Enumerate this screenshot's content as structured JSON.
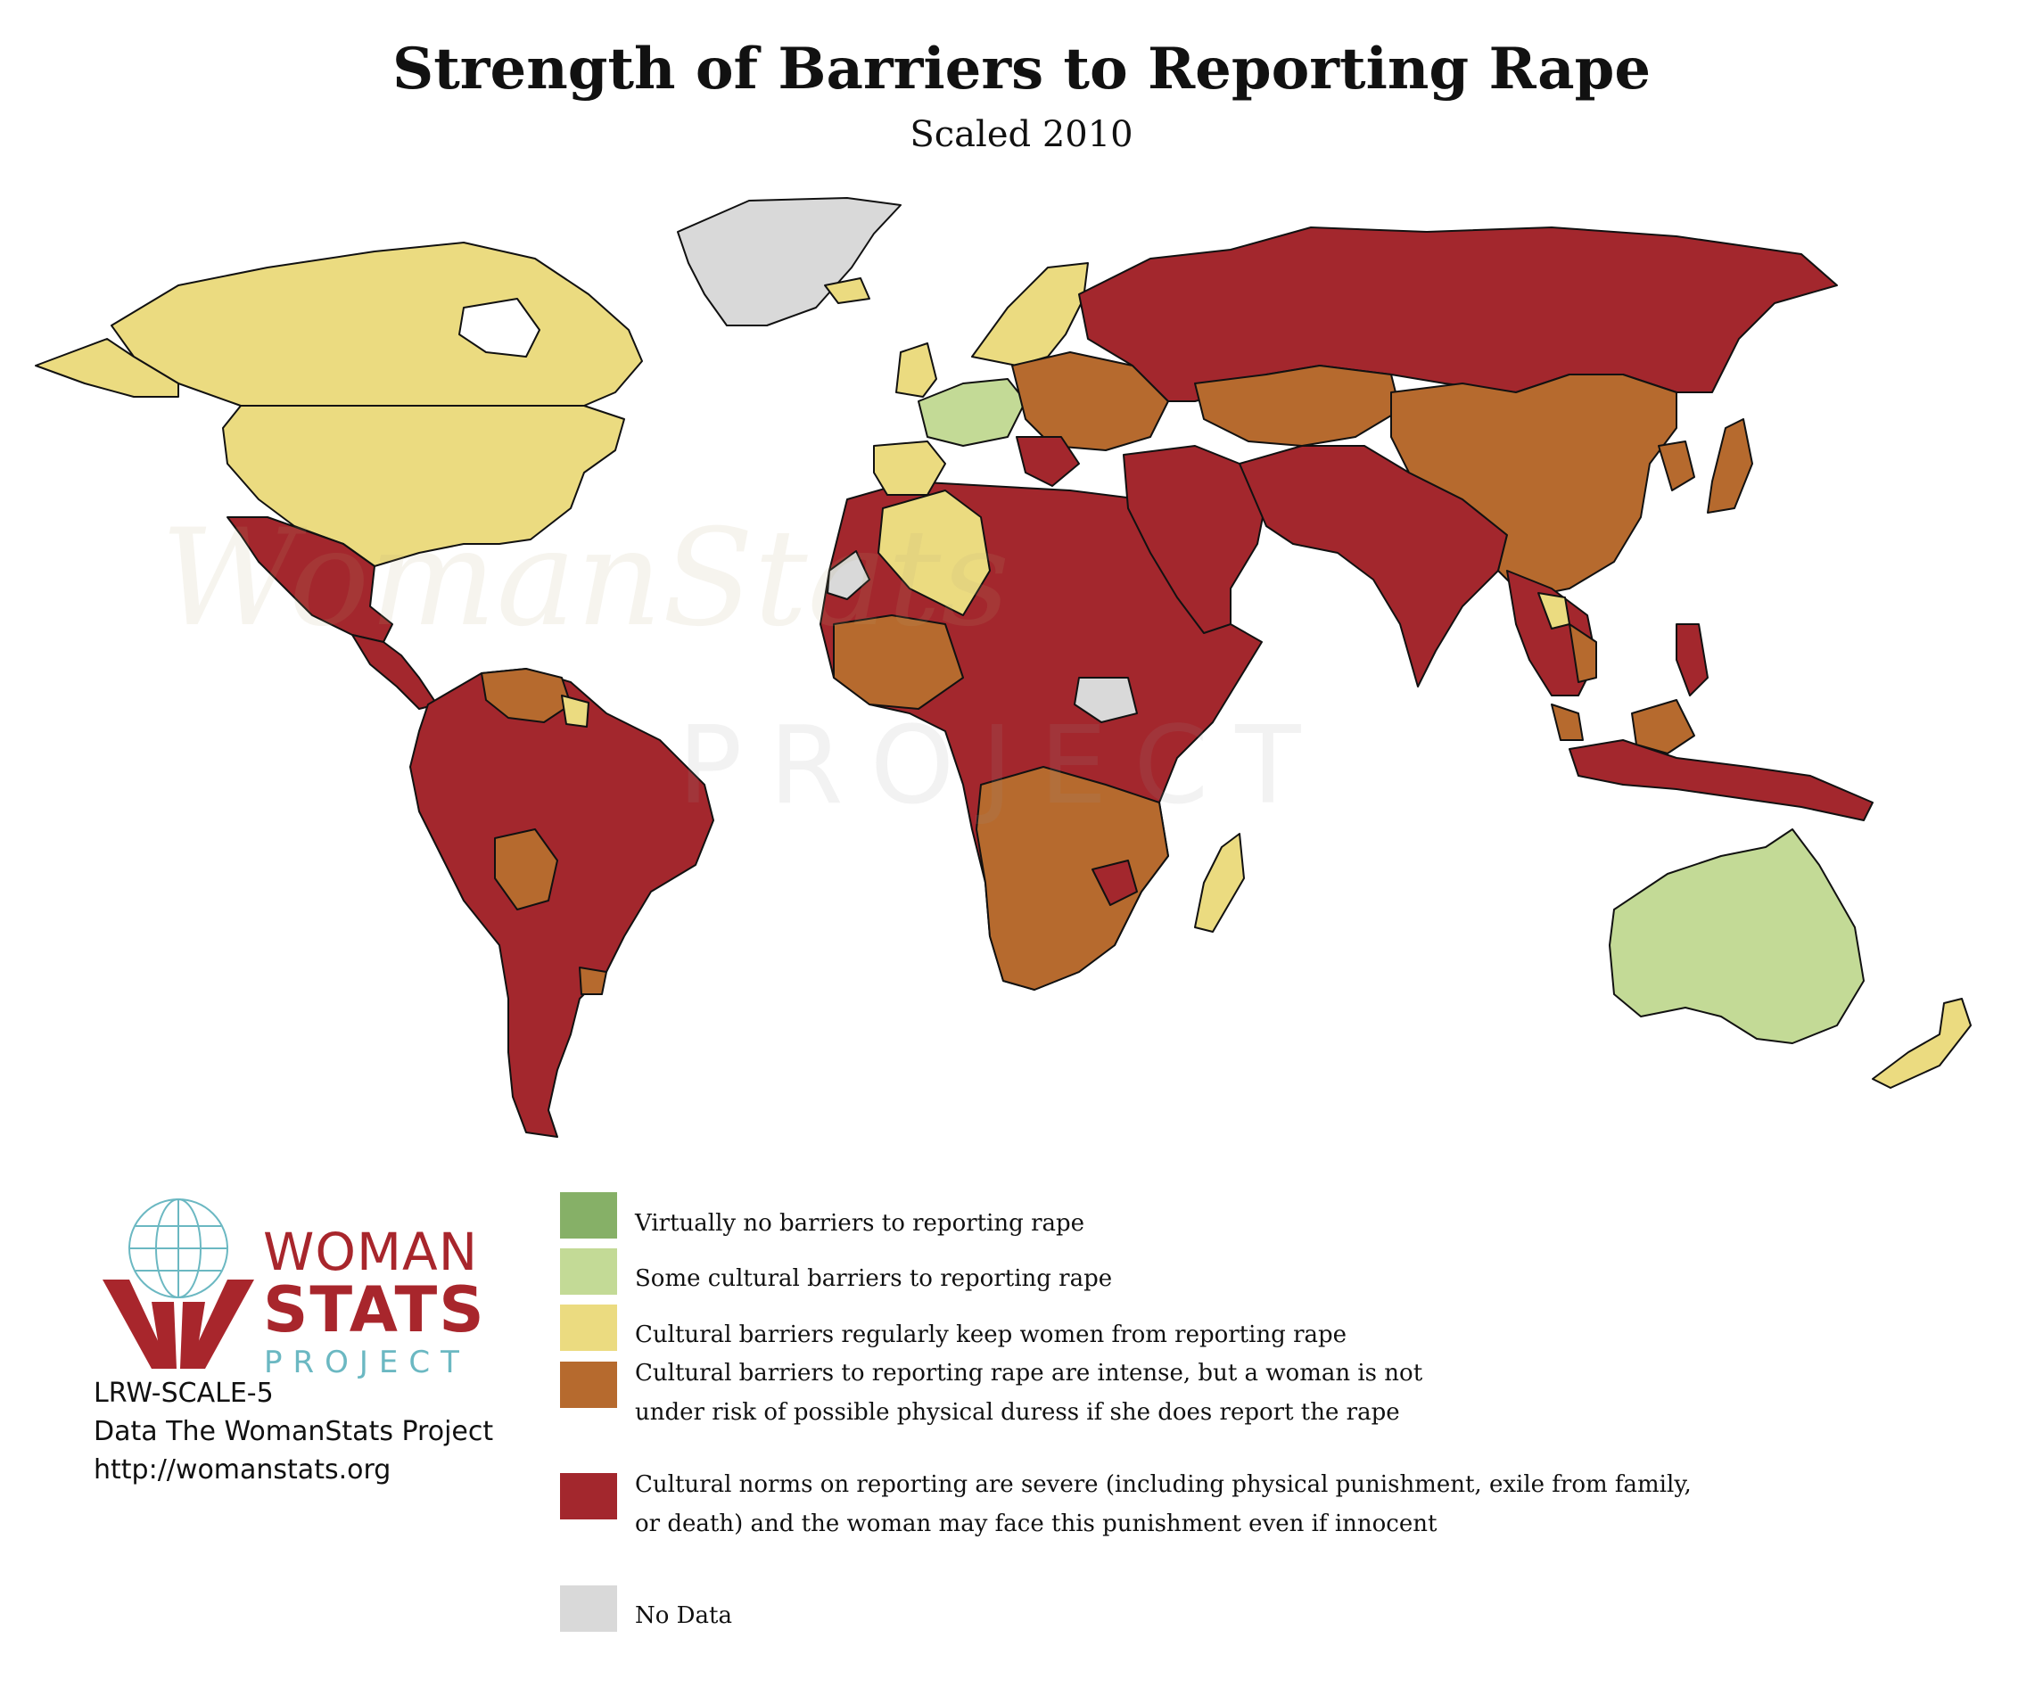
{
  "title": "Strength of Barriers to Reporting Rape",
  "subtitle": "Scaled 2010",
  "watermark": {
    "word1": "WomanStats",
    "word2": "PROJECT"
  },
  "logo": {
    "word1": "WOMAN",
    "word2": "STATS",
    "word3": "PROJECT"
  },
  "credits": {
    "code": "LRW-SCALE-5",
    "data": "Data The WomanStats Project",
    "url": "http://womanstats.org"
  },
  "colors": {
    "level1": "#86b067",
    "level2": "#c3da96",
    "level3": "#ebdb80",
    "level4": "#b66a2e",
    "level5": "#a3272d",
    "no_data": "#d9d9d9",
    "ocean": "#ffffff",
    "border": "#111111",
    "brand_red": "#a8262c",
    "brand_teal": "#6bb8c2"
  },
  "legend": [
    {
      "level": 1,
      "color_key": "level1",
      "lines": [
        "Virtually no barriers to reporting rape"
      ]
    },
    {
      "level": 2,
      "color_key": "level2",
      "lines": [
        "Some cultural barriers to reporting rape"
      ]
    },
    {
      "level": 3,
      "color_key": "level3",
      "lines": [
        "Cultural barriers regularly keep women from reporting rape"
      ]
    },
    {
      "level": 4,
      "color_key": "level4",
      "lines": [
        "Cultural barriers to reporting rape are intense, but a woman is not",
        "under risk of possible physical duress if she does report the rape"
      ]
    },
    {
      "level": 5,
      "color_key": "level5",
      "lines": [
        "Cultural norms on reporting are severe (including physical punishment, exile from family,",
        "or death) and the woman may face this punishment even if innocent"
      ]
    },
    {
      "level": 0,
      "color_key": "no_data",
      "lines": [
        "No Data"
      ]
    }
  ]
}
